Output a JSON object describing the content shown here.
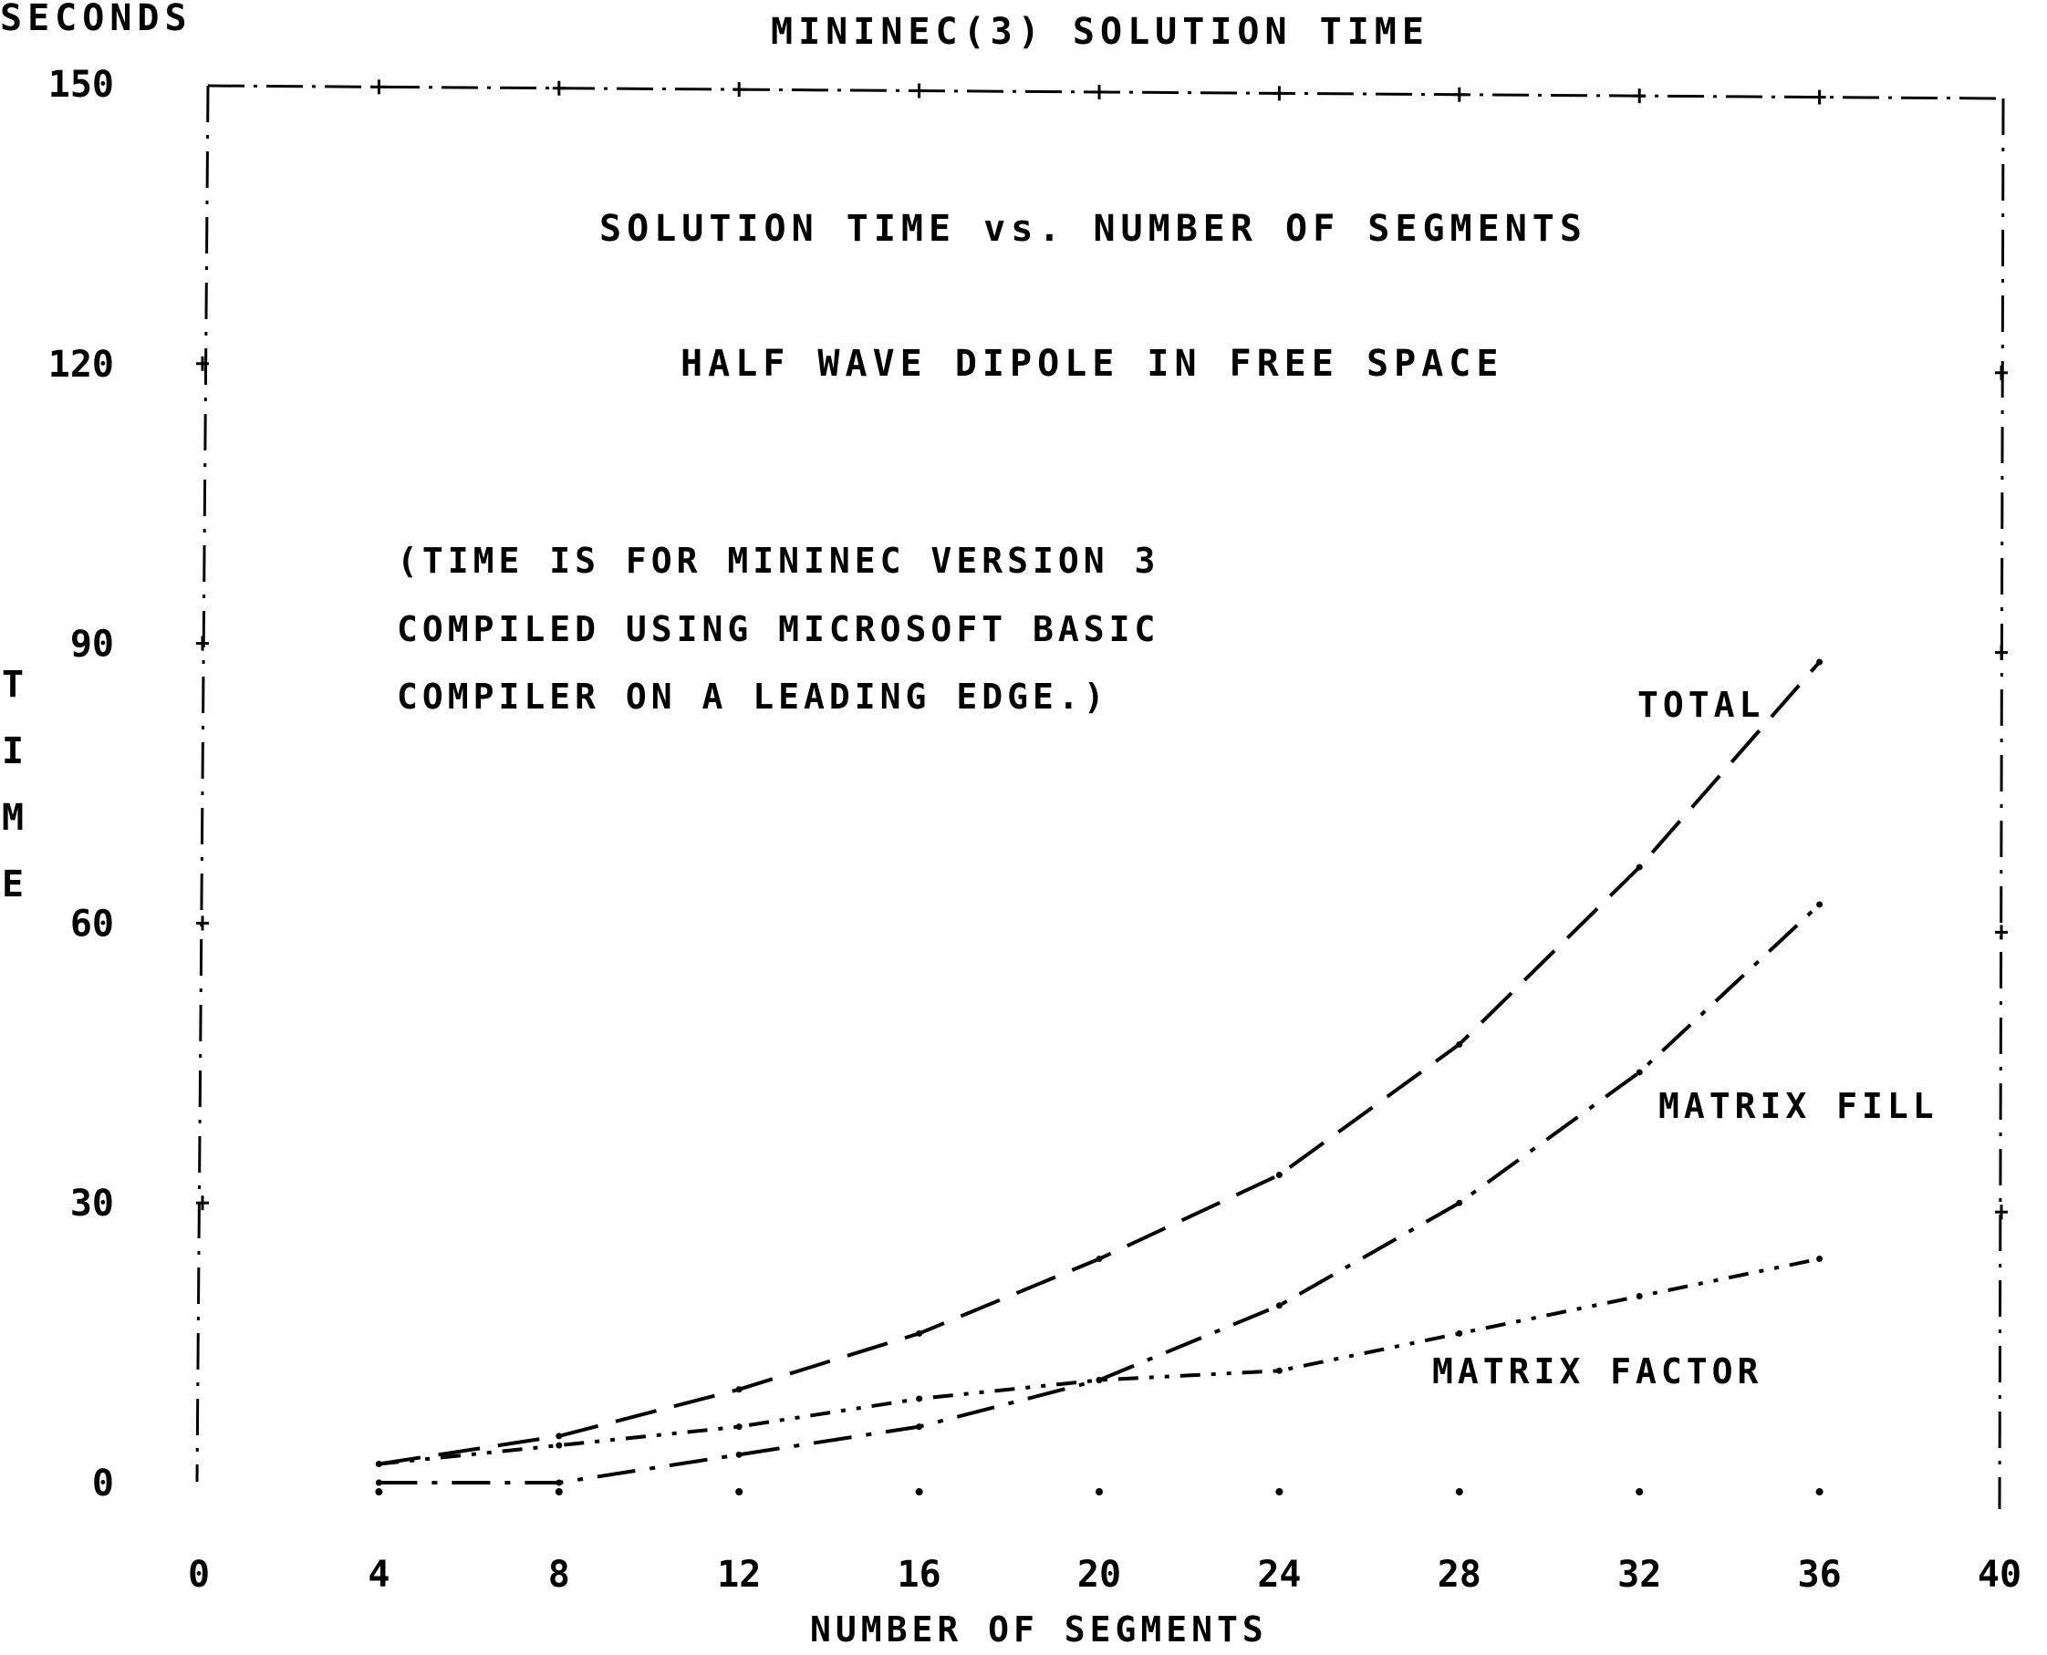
{
  "chart_data": {
    "type": "line",
    "title": "MININEC(3) SOLUTION TIME",
    "subtitle": "SOLUTION TIME vs. NUMBER OF SEGMENTS",
    "subtitle2": "HALF WAVE DIPOLE IN FREE SPACE",
    "note": [
      "(TIME IS FOR MININEC VERSION 3",
      "COMPILED USING MICROSOFT BASIC",
      "COMPILER ON A LEADING EDGE.)"
    ],
    "y_unit_label": "SECONDS",
    "ylabel": "TIME",
    "xlabel": "NUMBER OF SEGMENTS",
    "xlim": [
      0,
      40
    ],
    "ylim": [
      0,
      150
    ],
    "x_ticks": [
      "0",
      "4",
      "8",
      "12",
      "16",
      "20",
      "24",
      "28",
      "32",
      "36",
      "40"
    ],
    "y_ticks": [
      "0",
      "30",
      "60",
      "90",
      "120",
      "150"
    ],
    "grid": false,
    "legend": "inline labels",
    "series": [
      {
        "name": "TOTAL",
        "x": [
          4,
          8,
          12,
          16,
          20,
          24,
          28,
          32,
          36
        ],
        "y": [
          2,
          5,
          10,
          16,
          24,
          33,
          47,
          66,
          88
        ]
      },
      {
        "name": "MATRIX FILL",
        "x": [
          4,
          8,
          12,
          16,
          20,
          24,
          28,
          32,
          36
        ],
        "y": [
          0,
          0,
          3,
          6,
          11,
          19,
          30,
          44,
          62
        ]
      },
      {
        "name": "MATRIX FACTOR",
        "x": [
          4,
          8,
          12,
          16,
          20,
          24,
          28,
          32,
          36
        ],
        "y": [
          2,
          4,
          6,
          9,
          11,
          12,
          16,
          20,
          24
        ]
      }
    ]
  }
}
